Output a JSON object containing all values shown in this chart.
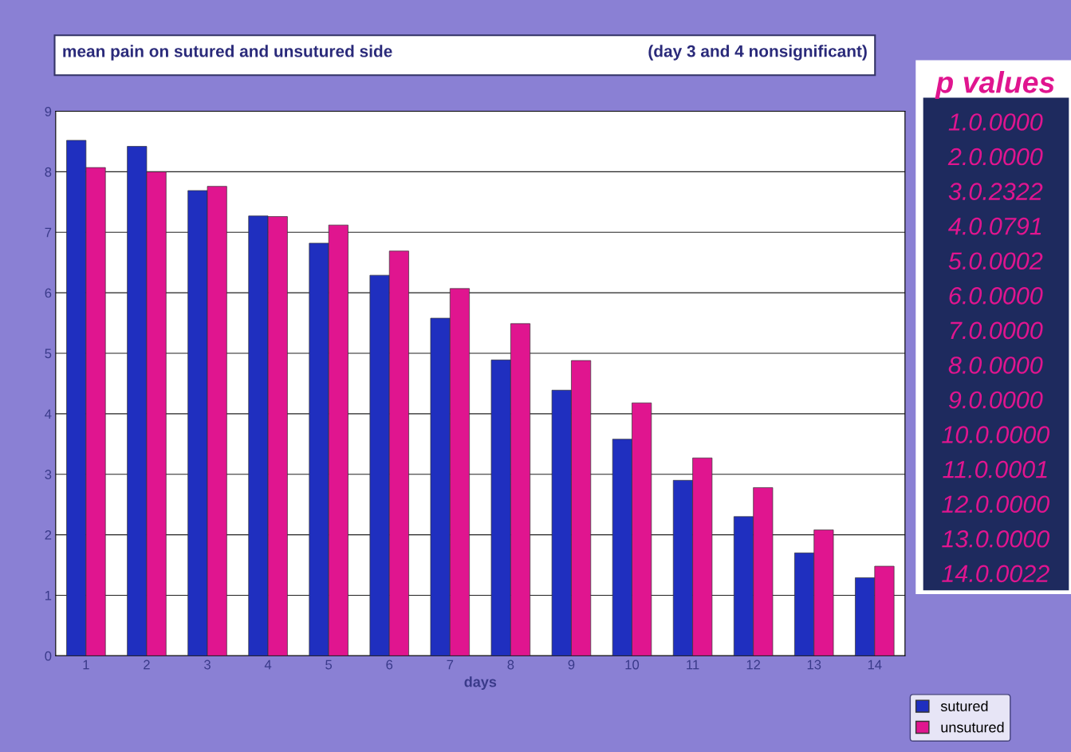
{
  "chart_data": {
    "type": "bar",
    "title": "mean pain on sutured and unsutured side",
    "subtitle": "(day 3 and 4 nonsignificant)",
    "xlabel": "days",
    "categories": [
      "1",
      "2",
      "3",
      "4",
      "5",
      "6",
      "7",
      "8",
      "9",
      "10",
      "11",
      "12",
      "13",
      "14"
    ],
    "series": [
      {
        "name": "sutured",
        "color": "#1f2fbf",
        "values": [
          8.52,
          8.42,
          7.69,
          7.27,
          6.82,
          6.29,
          5.58,
          4.89,
          4.39,
          3.58,
          2.9,
          2.3,
          1.7,
          1.29
        ]
      },
      {
        "name": "unsutured",
        "color": "#e0158f",
        "values": [
          8.07,
          8.0,
          7.76,
          7.26,
          7.12,
          6.69,
          6.07,
          5.49,
          4.88,
          4.18,
          3.27,
          2.78,
          2.08,
          1.48
        ]
      }
    ],
    "ylim": [
      0,
      9
    ],
    "yticks": [
      0,
      1,
      2,
      3,
      4,
      5,
      6,
      7,
      8,
      9
    ],
    "grid": "y",
    "legend": "bottom right",
    "annotations": [
      "p values",
      "1.0.0000",
      "2.0.0000",
      "3.0.2322",
      "4.0.0791",
      "5.0.0002",
      "6.0.0000",
      "7.0.0000",
      "8.0.0000",
      "9.0.0000",
      "10.0.0000",
      "11.0.0001",
      "12.0.0000",
      "13.0.0000",
      "14.0.0022"
    ]
  }
}
